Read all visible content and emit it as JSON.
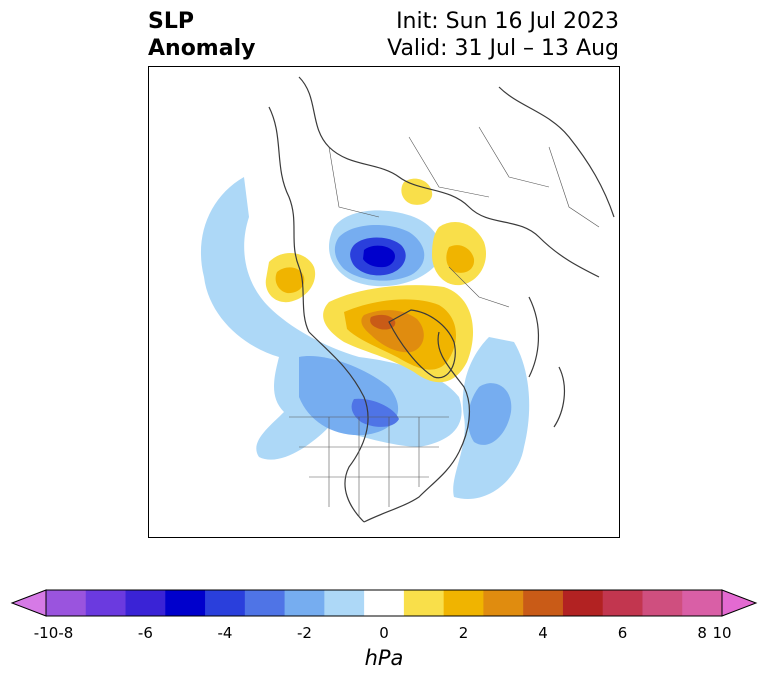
{
  "title": {
    "left_line1": "SLP",
    "left_line2": "Anomaly",
    "right_line1": "Init: Sun 16 Jul 2023",
    "right_line2": "Valid: 31 Jul – 13 Aug"
  },
  "colorbar": {
    "unit": "hPa",
    "tick_labels": [
      "-10",
      "-8",
      "-6",
      "-4",
      "-2",
      "0",
      "2",
      "4",
      "6",
      "8",
      "10"
    ],
    "colors": [
      "#d67ae6",
      "#9a54de",
      "#6b3adf",
      "#3a23d6",
      "#0000cc",
      "#2a3fdc",
      "#4f74e6",
      "#76adf0",
      "#add8f7",
      "#ffffff",
      "#f9df4a",
      "#f0b400",
      "#e08c0f",
      "#c95b17",
      "#b22222",
      "#c2364f",
      "#cf4f7f",
      "#d95fa6",
      "#e36ad1"
    ]
  }
}
